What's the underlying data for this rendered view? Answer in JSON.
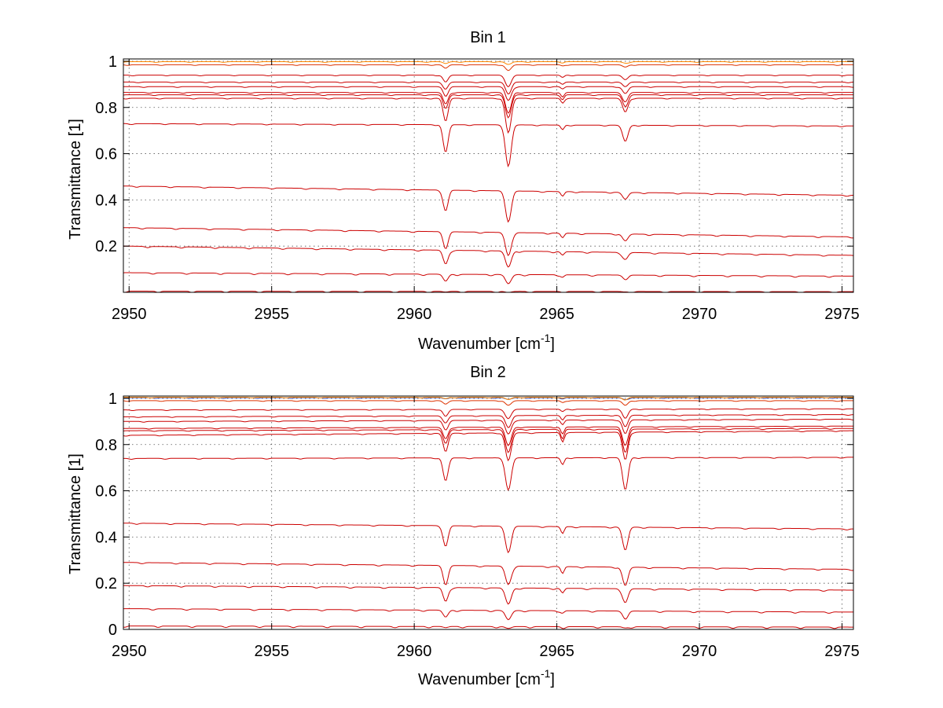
{
  "figure": {
    "background": "#ffffff"
  },
  "chart_data": [
    {
      "type": "line",
      "title": "Bin 1",
      "xlabel": "Wavenumber [cm",
      "xlabel_sup": "-1",
      "xlabel_suffix": "]",
      "ylabel": "Transmittance [1]",
      "xlim": [
        2949.8,
        2975.4
      ],
      "ylim": [
        0,
        1.01
      ],
      "xticks": [
        2950,
        2955,
        2960,
        2965,
        2970,
        2975
      ],
      "xtick_labels": [
        "2950",
        "2955",
        "2960",
        "2965",
        "2970",
        "2975"
      ],
      "yticks": [
        0.2,
        0.4,
        0.6,
        0.8,
        1
      ],
      "ytick_labels": [
        "0.2",
        "0.4",
        "0.6",
        "0.8",
        "1"
      ],
      "grid": true,
      "series": [
        {
          "color": "#cc0000",
          "start": 0.005,
          "end": 0.003,
          "depths": [
            0.003,
            0.005,
            0.002,
            0.002
          ]
        },
        {
          "color": "#cc0000",
          "start": 0.085,
          "end": 0.07,
          "depths": [
            0.03,
            0.04,
            0.01,
            0.015
          ]
        },
        {
          "color": "#cc0000",
          "start": 0.2,
          "end": 0.16,
          "depths": [
            0.06,
            0.07,
            0.015,
            0.03
          ]
        },
        {
          "color": "#cc0000",
          "start": 0.28,
          "end": 0.24,
          "depths": [
            0.07,
            0.1,
            0.02,
            0.03
          ]
        },
        {
          "color": "#cc0000",
          "start": 0.46,
          "end": 0.42,
          "depths": [
            0.09,
            0.13,
            0.02,
            0.03
          ]
        },
        {
          "color": "#cc0000",
          "start": 0.73,
          "end": 0.72,
          "depths": [
            0.12,
            0.18,
            0.02,
            0.07
          ]
        },
        {
          "color": "#cc0000",
          "start": 0.84,
          "end": 0.84,
          "depths": [
            0.1,
            0.15,
            0.02,
            0.06
          ]
        },
        {
          "color": "#cc0000",
          "start": 0.855,
          "end": 0.855,
          "depths": [
            0.06,
            0.1,
            0.02,
            0.05
          ]
        },
        {
          "color": "#cc0000",
          "start": 0.865,
          "end": 0.865,
          "depths": [
            0.05,
            0.09,
            0.02,
            0.04
          ]
        },
        {
          "color": "#cc0000",
          "start": 0.89,
          "end": 0.89,
          "depths": [
            0.04,
            0.06,
            0.01,
            0.03
          ]
        },
        {
          "color": "#cc0000",
          "start": 0.91,
          "end": 0.91,
          "depths": [
            0.03,
            0.05,
            0.01,
            0.02
          ]
        },
        {
          "color": "#cc0000",
          "start": 0.94,
          "end": 0.94,
          "depths": [
            0.03,
            0.05,
            0.01,
            0.02
          ]
        },
        {
          "color": "#dd3300",
          "start": 0.985,
          "end": 0.985,
          "depths": [
            0.015,
            0.025,
            0.005,
            0.01
          ]
        },
        {
          "color": "#ff8800",
          "start": 0.998,
          "end": 0.998,
          "depths": [
            0.008,
            0.012,
            0.003,
            0.006
          ]
        }
      ]
    },
    {
      "type": "line",
      "title": "Bin 2",
      "xlabel": "Wavenumber [cm",
      "xlabel_sup": "-1",
      "xlabel_suffix": "]",
      "ylabel": "Transmittance [1]",
      "xlim": [
        2949.8,
        2975.4
      ],
      "ylim": [
        0,
        1.01
      ],
      "xticks": [
        2950,
        2955,
        2960,
        2965,
        2970,
        2975
      ],
      "xtick_labels": [
        "2950",
        "2955",
        "2960",
        "2965",
        "2970",
        "2975"
      ],
      "yticks": [
        0,
        0.2,
        0.4,
        0.6,
        0.8,
        1
      ],
      "ytick_labels": [
        "0",
        "0.2",
        "0.4",
        "0.6",
        "0.8",
        "1"
      ],
      "grid": true,
      "series": [
        {
          "color": "#cc0000",
          "start": 0.015,
          "end": 0.01,
          "depths": [
            0.005,
            0.008,
            0.003,
            0.005
          ]
        },
        {
          "color": "#cc0000",
          "start": 0.09,
          "end": 0.075,
          "depths": [
            0.03,
            0.04,
            0.01,
            0.03
          ]
        },
        {
          "color": "#cc0000",
          "start": 0.19,
          "end": 0.17,
          "depths": [
            0.06,
            0.07,
            0.02,
            0.06
          ]
        },
        {
          "color": "#cc0000",
          "start": 0.29,
          "end": 0.26,
          "depths": [
            0.08,
            0.08,
            0.03,
            0.08
          ]
        },
        {
          "color": "#cc0000",
          "start": 0.46,
          "end": 0.435,
          "depths": [
            0.09,
            0.11,
            0.03,
            0.1
          ]
        },
        {
          "color": "#cc0000",
          "start": 0.74,
          "end": 0.745,
          "depths": [
            0.1,
            0.14,
            0.03,
            0.14
          ]
        },
        {
          "color": "#cc0000",
          "start": 0.84,
          "end": 0.86,
          "depths": [
            0.08,
            0.12,
            0.04,
            0.12
          ]
        },
        {
          "color": "#cc0000",
          "start": 0.86,
          "end": 0.87,
          "depths": [
            0.06,
            0.1,
            0.04,
            0.1
          ]
        },
        {
          "color": "#cc0000",
          "start": 0.87,
          "end": 0.88,
          "depths": [
            0.05,
            0.08,
            0.03,
            0.08
          ]
        },
        {
          "color": "#cc0000",
          "start": 0.9,
          "end": 0.91,
          "depths": [
            0.04,
            0.06,
            0.02,
            0.06
          ]
        },
        {
          "color": "#cc0000",
          "start": 0.92,
          "end": 0.93,
          "depths": [
            0.03,
            0.05,
            0.02,
            0.05
          ]
        },
        {
          "color": "#cc0000",
          "start": 0.95,
          "end": 0.955,
          "depths": [
            0.03,
            0.04,
            0.01,
            0.04
          ]
        },
        {
          "color": "#dd3300",
          "start": 0.99,
          "end": 0.99,
          "depths": [
            0.015,
            0.02,
            0.008,
            0.02
          ]
        },
        {
          "color": "#3344aa",
          "start": 1.003,
          "end": 1.003,
          "depths": [
            0.005,
            0.008,
            0.003,
            0.008
          ]
        },
        {
          "color": "#ff8800",
          "start": 1.005,
          "end": 1.005,
          "depths": [
            0.006,
            0.01,
            0.004,
            0.01
          ]
        }
      ]
    }
  ]
}
